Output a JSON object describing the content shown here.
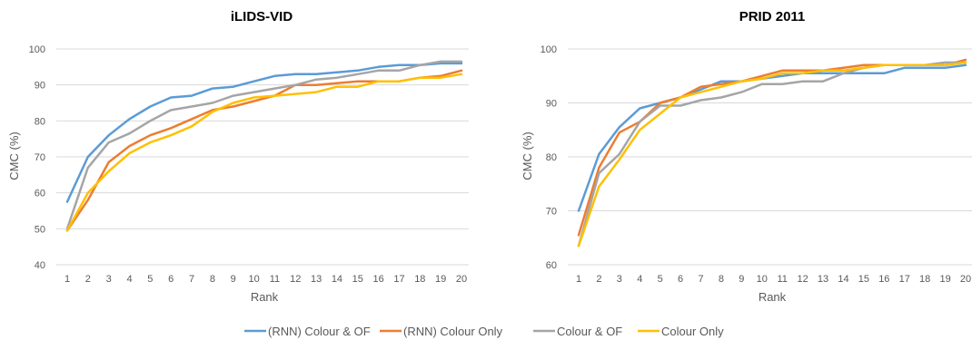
{
  "legend": [
    {
      "label": "(RNN) Colour & OF",
      "color": "#5B9BD5"
    },
    {
      "label": "(RNN) Colour Only",
      "color": "#ED7D31"
    },
    {
      "label": "Colour & OF",
      "color": "#A5A5A5"
    },
    {
      "label": "Colour Only",
      "color": "#FFC000"
    }
  ],
  "chart_data": [
    {
      "type": "line",
      "title": "iLIDS-VID",
      "xlabel": "Rank",
      "ylabel": "CMC (%)",
      "x": [
        1,
        2,
        3,
        4,
        5,
        6,
        7,
        8,
        9,
        10,
        11,
        12,
        13,
        14,
        15,
        16,
        17,
        18,
        19,
        20
      ],
      "ylim": [
        40,
        100
      ],
      "yticks": [
        40,
        50,
        60,
        70,
        80,
        90,
        100
      ],
      "grid": true,
      "legend_position": "bottom",
      "series": [
        {
          "name": "(RNN) Colour & OF",
          "color": "#5B9BD5",
          "values": [
            57.5,
            70,
            76,
            80.5,
            84,
            86.5,
            87,
            89,
            89.5,
            91,
            92.5,
            93,
            93,
            93.5,
            94,
            95,
            95.5,
            95.5,
            96,
            96
          ]
        },
        {
          "name": "(RNN) Colour Only",
          "color": "#ED7D31",
          "values": [
            49.5,
            58,
            68.5,
            73,
            76,
            78,
            80.5,
            83,
            84,
            85.5,
            87,
            90,
            90,
            90.5,
            91,
            91,
            91,
            92,
            92.5,
            94
          ]
        },
        {
          "name": "Colour & OF",
          "color": "#A5A5A5",
          "values": [
            50,
            67,
            74,
            76.5,
            80,
            83,
            84,
            85,
            87,
            88,
            89,
            90,
            91.5,
            92,
            93,
            94,
            94,
            95.5,
            96.5,
            96.5
          ]
        },
        {
          "name": "Colour Only",
          "color": "#FFC000",
          "values": [
            49.5,
            60,
            66,
            71,
            74,
            76,
            78.5,
            82.5,
            85,
            86.5,
            87,
            87.5,
            88,
            89.5,
            89.5,
            91,
            91,
            92,
            92,
            93
          ]
        }
      ]
    },
    {
      "type": "line",
      "title": "PRID 2011",
      "xlabel": "Rank",
      "ylabel": "CMC (%)",
      "x": [
        1,
        2,
        3,
        4,
        5,
        6,
        7,
        8,
        9,
        10,
        11,
        12,
        13,
        14,
        15,
        16,
        17,
        18,
        19,
        20
      ],
      "ylim": [
        60,
        100
      ],
      "yticks": [
        60,
        70,
        80,
        90,
        100
      ],
      "grid": true,
      "legend_position": "bottom",
      "series": [
        {
          "name": "(RNN) Colour & OF",
          "color": "#5B9BD5",
          "values": [
            70,
            80.5,
            85.5,
            89,
            90,
            91,
            92.5,
            94,
            94,
            94.5,
            95,
            95.5,
            95.5,
            95.5,
            95.5,
            95.5,
            96.5,
            96.5,
            96.5,
            97
          ]
        },
        {
          "name": "(RNN) Colour Only",
          "color": "#ED7D31",
          "values": [
            65.5,
            78,
            84.5,
            86.5,
            90,
            91,
            93,
            93.5,
            94,
            95,
            96,
            96,
            96,
            96.5,
            97,
            97,
            97,
            97,
            97,
            98
          ]
        },
        {
          "name": "Colour & OF",
          "color": "#A5A5A5",
          "values": [
            63.5,
            77,
            80.5,
            86.5,
            89.5,
            89.5,
            90.5,
            91,
            92,
            93.5,
            93.5,
            94,
            94,
            95.5,
            96.5,
            97,
            97,
            97,
            97.5,
            97.5
          ]
        },
        {
          "name": "Colour Only",
          "color": "#FFC000",
          "values": [
            63.5,
            74.5,
            79.5,
            85,
            88,
            91,
            92,
            93,
            94,
            94.5,
            95.5,
            95.5,
            96,
            96,
            96.5,
            97,
            97,
            97,
            97,
            97.5
          ]
        }
      ]
    }
  ]
}
